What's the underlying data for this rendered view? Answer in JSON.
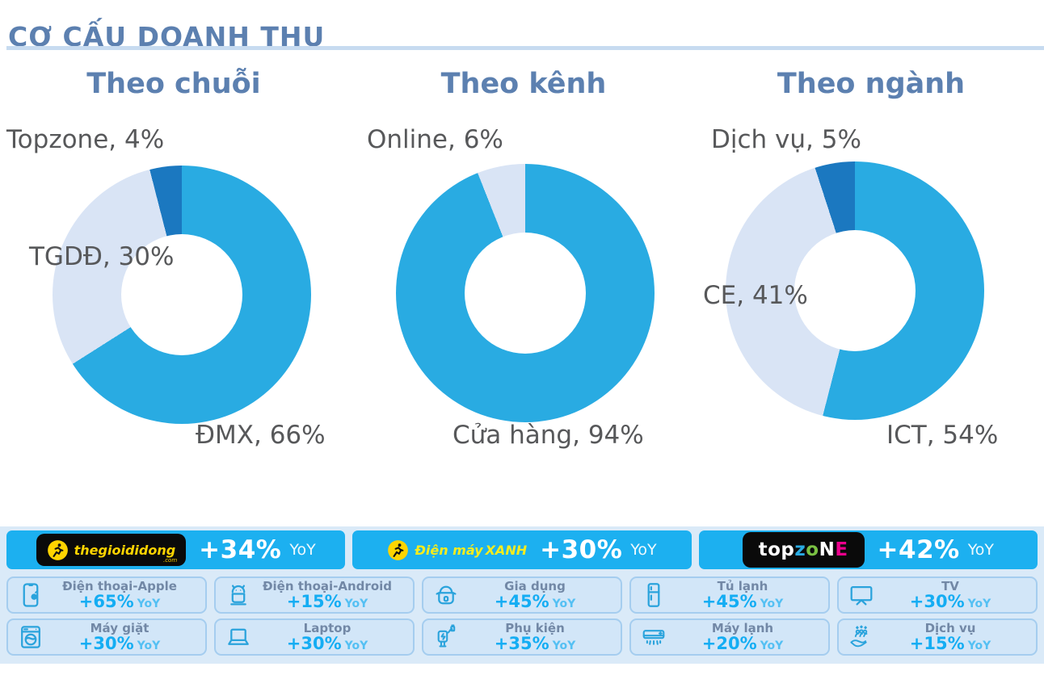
{
  "header": {
    "title": "CƠ CẤU DOANH THU"
  },
  "colors": {
    "heading": "#5C80B0",
    "divider": "#C7DBF0",
    "label": "#57585A",
    "banner": "#1CB0F0",
    "panel": "#DAEAF8",
    "card-bg": "#D2E6F8",
    "card-border": "#A5CDEF",
    "card-title": "#7288A6",
    "value": "#14ADF3",
    "yoy": "#54C0F3",
    "brand-yellow": "#FFD400",
    "dmx-yellow": "#F6EC1E"
  },
  "chart_data": [
    {
      "type": "donut",
      "title": "Theo chuỗi",
      "segments": [
        {
          "label": "ĐMX",
          "value": 66,
          "color": "#29ABE2"
        },
        {
          "label": "TGDĐ",
          "value": 30,
          "color": "#D9E4F5"
        },
        {
          "label": "Topzone",
          "value": 4,
          "color": "#1B78C0"
        }
      ],
      "labels": {
        "top": "Topzone, 4%",
        "left": "TGDĐ, 30%",
        "bottom": "ĐMX, 66%"
      }
    },
    {
      "type": "donut",
      "title": "Theo kênh",
      "segments": [
        {
          "label": "Cửa hàng",
          "value": 94,
          "color": "#29ABE2"
        },
        {
          "label": "Online",
          "value": 6,
          "color": "#D9E4F5"
        }
      ],
      "labels": {
        "top": "Online, 6%",
        "bottom": "Cửa hàng, 94%"
      }
    },
    {
      "type": "donut",
      "title": "Theo ngành",
      "segments": [
        {
          "label": "ICT",
          "value": 54,
          "color": "#29ABE2"
        },
        {
          "label": "CE",
          "value": 41,
          "color": "#D9E4F5"
        },
        {
          "label": "Dịch vụ",
          "value": 5,
          "color": "#1B78C0"
        }
      ],
      "labels": {
        "top": "Dịch vụ, 5%",
        "left": "CE, 41%",
        "bottom": "ICT, 54%"
      }
    }
  ],
  "banners": [
    {
      "brand": "thegioididong",
      "icon": "runner-badge-icon",
      "logo_text": "thegioididong",
      "logo_suffix": ".com",
      "growth": "+34%",
      "yoy": "YoY"
    },
    {
      "brand": "dienmayxanh",
      "icon": "runner-badge-icon",
      "logo_text_italic": "Điện máy",
      "logo_text_bold": "XANH",
      "growth": "+30%",
      "yoy": "YoY"
    },
    {
      "brand": "topzone",
      "growth": "+42%",
      "yoy": "YoY",
      "logo_letters": [
        [
          "top",
          "#FFFFFF"
        ],
        [
          "z",
          "#29ABE2"
        ],
        [
          "o",
          "#7AC143"
        ],
        [
          "N",
          "#FFFFFF"
        ],
        [
          "E",
          "#EC008C"
        ]
      ]
    }
  ],
  "categories": {
    "rows": [
      [
        {
          "icon": "smartphone-apple-icon",
          "title": "Điện thoại-Apple",
          "growth": "+65%",
          "yoy": "YoY"
        },
        {
          "icon": "android-icon",
          "title": "Điện thoại-Android",
          "growth": "+15%",
          "yoy": "YoY"
        },
        {
          "icon": "rice-cooker-icon",
          "title": "Gia dụng",
          "growth": "+45%",
          "yoy": "YoY"
        },
        {
          "icon": "fridge-icon",
          "title": "Tủ lạnh",
          "growth": "+45%",
          "yoy": "YoY"
        },
        {
          "icon": "tv-icon",
          "title": "TV",
          "growth": "+30%",
          "yoy": "YoY"
        }
      ],
      [
        {
          "icon": "washing-machine-icon",
          "title": "Máy giặt",
          "growth": "+30%",
          "yoy": "YoY"
        },
        {
          "icon": "laptop-icon",
          "title": "Laptop",
          "growth": "+30%",
          "yoy": "YoY"
        },
        {
          "icon": "charger-icon",
          "title": "Phụ kiện",
          "growth": "+35%",
          "yoy": "YoY"
        },
        {
          "icon": "air-conditioner-icon",
          "title": "Máy lạnh",
          "growth": "+20%",
          "yoy": "YoY"
        },
        {
          "icon": "service-hand-icon",
          "title": "Dịch vụ",
          "growth": "+15%",
          "yoy": "YoY"
        }
      ]
    ]
  }
}
